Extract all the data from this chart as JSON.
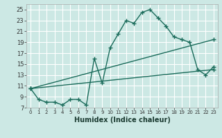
{
  "xlabel": "Humidex (Indice chaleur)",
  "bg_color": "#cce8e4",
  "grid_color": "#ffffff",
  "line_color": "#1a6b5a",
  "xlim": [
    -0.5,
    23.5
  ],
  "ylim": [
    7,
    26
  ],
  "yticks": [
    7,
    9,
    11,
    13,
    15,
    17,
    19,
    21,
    23,
    25
  ],
  "xticks": [
    0,
    1,
    2,
    3,
    4,
    5,
    6,
    7,
    8,
    9,
    10,
    11,
    12,
    13,
    14,
    15,
    16,
    17,
    18,
    19,
    20,
    21,
    22,
    23
  ],
  "series1_x": [
    0,
    1,
    2,
    3,
    4,
    5,
    6,
    7,
    8,
    9,
    10,
    11,
    12,
    13,
    14,
    15,
    16,
    17,
    18,
    19,
    20,
    21,
    22,
    23
  ],
  "series1_y": [
    10.5,
    8.5,
    8.0,
    8.0,
    7.5,
    8.5,
    8.5,
    7.5,
    16.0,
    11.5,
    18.0,
    20.5,
    23.0,
    22.5,
    24.5,
    25.0,
    23.5,
    22.0,
    20.0,
    19.5,
    19.0,
    14.0,
    13.0,
    14.5
  ],
  "series2_x": [
    0,
    23
  ],
  "series2_y": [
    10.5,
    19.5
  ],
  "series3_x": [
    0,
    23
  ],
  "series3_y": [
    10.5,
    14.0
  ]
}
